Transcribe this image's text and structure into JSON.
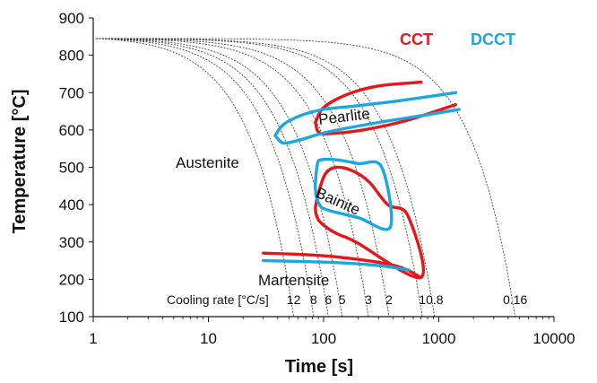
{
  "chart_data": {
    "type": "line",
    "xlabel": "Time [s]",
    "ylabel": "Temperature [°C]",
    "xscale": "log",
    "xlim": [
      1,
      10000
    ],
    "ylim": [
      100,
      900
    ],
    "x_ticks": [
      1,
      10,
      100,
      1000,
      10000
    ],
    "x_tick_labels": [
      "1",
      "10",
      "100",
      "1000",
      "10000"
    ],
    "y_ticks": [
      100,
      200,
      300,
      400,
      500,
      600,
      700,
      800,
      900
    ],
    "y_tick_labels": [
      "100",
      "200",
      "300",
      "400",
      "500",
      "600",
      "700",
      "800",
      "900"
    ],
    "grid": false,
    "legend": {
      "placement": "top-right",
      "entries": [
        {
          "label": "CCT",
          "color": "#e8151b"
        },
        {
          "label": "DCCT",
          "color": "#1ba7e0"
        }
      ]
    },
    "annotations": {
      "austenite": "Austenite",
      "pearlite": "Pearlite",
      "bainite": "Bainite",
      "martensite": "Martensite",
      "cooling_rate_title": "Cooling rate [°C/s]"
    },
    "cooling_curves": {
      "start_temperature": 845,
      "rates": [
        {
          "label": "12",
          "end_time": 55
        },
        {
          "label": "8",
          "end_time": 82
        },
        {
          "label": "6",
          "end_time": 110
        },
        {
          "label": "5",
          "end_time": 145
        },
        {
          "label": "3",
          "end_time": 245
        },
        {
          "label": "2",
          "end_time": 370
        },
        {
          "label": "1",
          "end_time": 720
        },
        {
          "label": "0.8",
          "end_time": 920
        },
        {
          "label": "0.16",
          "end_time": 4600
        }
      ]
    },
    "series": [
      {
        "name": "CCT",
        "color": "#e8151b",
        "segments": [
          {
            "region": "pearlite-upper",
            "points": [
              [
                85,
                620
              ],
              [
                100,
                660
              ],
              [
                160,
                695
              ],
              [
                300,
                718
              ],
              [
                700,
                728
              ]
            ]
          },
          {
            "region": "pearlite-lower",
            "points": [
              [
                85,
                620
              ],
              [
                90,
                595
              ],
              [
                110,
                590
              ],
              [
                220,
                600
              ],
              [
                520,
                625
              ],
              [
                1400,
                668
              ]
            ]
          },
          {
            "region": "bainite",
            "points": [
              [
                92,
                440
              ],
              [
                85,
                390
              ],
              [
                90,
                360
              ],
              [
                105,
                340
              ],
              [
                135,
                320
              ],
              [
                190,
                300
              ],
              [
                700,
                205
              ],
              [
                540,
                370
              ],
              [
                360,
                400
              ],
              [
                250,
                460
              ],
              [
                180,
                490
              ],
              [
                130,
                500
              ],
              [
                105,
                485
              ],
              [
                92,
                440
              ]
            ]
          },
          {
            "region": "martensite-start",
            "points": [
              [
                30,
                270
              ],
              [
                110,
                262
              ],
              [
                400,
                238
              ],
              [
                700,
                205
              ]
            ]
          }
        ]
      },
      {
        "name": "DCCT",
        "color": "#1ba7e0",
        "segments": [
          {
            "region": "pearlite-upper",
            "points": [
              [
                38,
                585
              ],
              [
                45,
                615
              ],
              [
                65,
                640
              ],
              [
                100,
                655
              ],
              [
                200,
                665
              ],
              [
                500,
                680
              ],
              [
                1400,
                700
              ]
            ]
          },
          {
            "region": "pearlite-lower",
            "points": [
              [
                38,
                585
              ],
              [
                45,
                565
              ],
              [
                65,
                575
              ],
              [
                110,
                595
              ],
              [
                300,
                620
              ],
              [
                700,
                638
              ],
              [
                1500,
                655
              ]
            ]
          },
          {
            "region": "bainite",
            "points": [
              [
                88,
                505
              ],
              [
                85,
                440
              ],
              [
                92,
                400
              ],
              [
                110,
                385
              ],
              [
                200,
                365
              ],
              [
                380,
                340
              ],
              [
                320,
                500
              ],
              [
                200,
                510
              ],
              [
                130,
                520
              ],
              [
                95,
                520
              ],
              [
                88,
                505
              ]
            ]
          },
          {
            "region": "martensite-start",
            "points": [
              [
                30,
                250
              ],
              [
                120,
                245
              ],
              [
                300,
                237
              ],
              [
                550,
                225
              ]
            ]
          }
        ]
      }
    ]
  }
}
